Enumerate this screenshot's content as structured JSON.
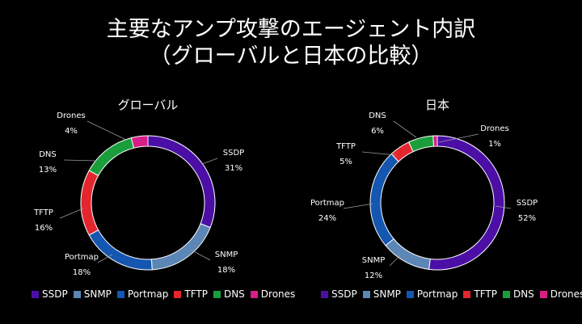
{
  "title_line1": "主要なアンプ攻撃のエージェント内訳",
  "title_line2": "（グローバルと日本の比較）",
  "colors": {
    "SSDP": "#4b0fa6",
    "SNMP": "#5b86b5",
    "Portmap": "#1456b0",
    "TFTP": "#e3262e",
    "DNS": "#1a9e3c",
    "Drones": "#d61e86"
  },
  "legend": [
    "SSDP",
    "SNMP",
    "Portmap",
    "TFTP",
    "DNS",
    "Drones"
  ],
  "chart_data": [
    {
      "type": "pie",
      "title": "グローバル",
      "categories": [
        "SSDP",
        "SNMP",
        "Portmap",
        "TFTP",
        "DNS",
        "Drones"
      ],
      "values": [
        31,
        18,
        18,
        16,
        13,
        4
      ],
      "value_labels": [
        "31%",
        "18%",
        "18%",
        "16%",
        "13%",
        "4%"
      ]
    },
    {
      "type": "pie",
      "title": "日本",
      "categories": [
        "SSDP",
        "SNMP",
        "Portmap",
        "TFTP",
        "DNS",
        "Drones"
      ],
      "values": [
        52,
        12,
        24,
        5,
        6,
        1
      ],
      "value_labels": [
        "52%",
        "12%",
        "24%",
        "5%",
        "6%",
        "1%"
      ]
    }
  ]
}
